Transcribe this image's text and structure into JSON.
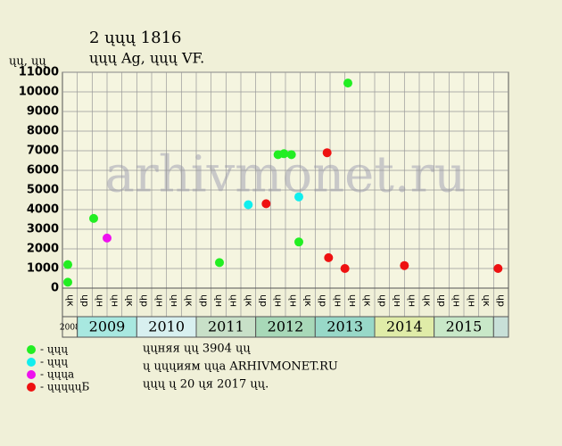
{
  "chart_data": {
    "type": "scatter",
    "title": "2 ųųų 1816",
    "subtitle": "ųųų Ag, ųųų VF.",
    "y_label": "ųų, ųų",
    "watermark": "arhivmonet.ru",
    "notes": [
      "ųųняя ųų 3904 ųų",
      "ų ųųųиям ųųа ARHIVMONET.RU",
      "ųųų ų 20 ųя 2017 ųų."
    ],
    "columns": [
      "ųк",
      "ųр",
      "ųн",
      "ųн",
      "ųк",
      "ųр",
      "ųн",
      "ųн",
      "ųк",
      "ųр",
      "ųн",
      "ųн",
      "ųк",
      "ųр",
      "ųн",
      "ųн",
      "ųк",
      "ųр",
      "ųн",
      "ųн",
      "ųк",
      "ųр",
      "ųн",
      "ųн",
      "ųк",
      "ųр",
      "ųн",
      "ųн",
      "ųк",
      "ųр"
    ],
    "years": [
      "2008",
      "2009",
      "2010",
      "2011",
      "2012",
      "2013",
      "2014",
      "2015",
      null
    ],
    "year_colors": [
      "#f0f0d8",
      "#a8e8e0",
      "#d8f0f0",
      "#c8e0c8",
      "#a8d8b8",
      "#98d8c8",
      "#e0eca8",
      "#c8e8c8",
      "#c8e0d8"
    ],
    "xlim": [
      0,
      30
    ],
    "ylim": [
      0,
      11000
    ],
    "yticks": [
      0,
      1000,
      2000,
      3000,
      4000,
      5000,
      6000,
      7000,
      8000,
      9000,
      10000,
      11000
    ],
    "grid": true,
    "series": [
      {
        "name": "- ųųų",
        "color": "#22ee22",
        "x": [
          0.36,
          0.36,
          2.1,
          10.56,
          14.5,
          14.9,
          15.4,
          15.9,
          19.2
        ],
        "values": [
          1200,
          300,
          3550,
          1300,
          6800,
          6850,
          6800,
          2350,
          10450
        ]
      },
      {
        "name": "- ųųų",
        "color": "#11eeee",
        "x": [
          12.5,
          15.9
        ],
        "values": [
          4250,
          4650
        ]
      },
      {
        "name": "- ųųųа",
        "color": "#ee11ee",
        "x": [
          3.0
        ],
        "values": [
          2550
        ]
      },
      {
        "name": "- ųųųųųБ",
        "color": "#ee1111",
        "x": [
          13.7,
          17.8,
          17.9,
          19.0,
          23.0,
          29.3
        ],
        "values": [
          4300,
          6900,
          1550,
          1000,
          1150,
          1000
        ]
      }
    ]
  }
}
